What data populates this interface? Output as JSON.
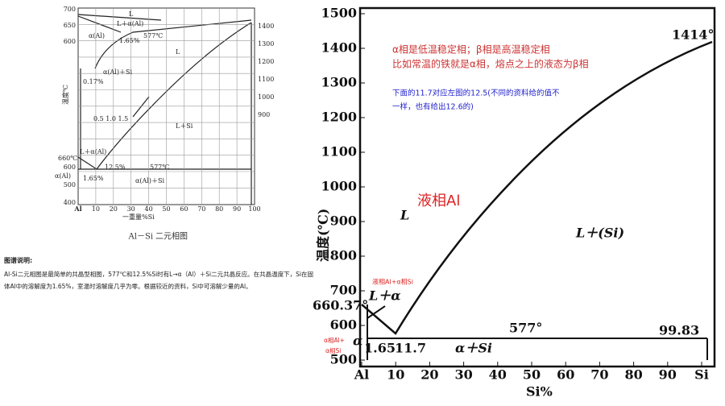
{
  "left_diagram": {
    "y_ticks_upper": [
      "700",
      "650",
      "600"
    ],
    "y_ticks_lower": [
      "600",
      "500",
      "400"
    ],
    "right_ticks": [
      "1400",
      "1300",
      "1200",
      "1100",
      "1000",
      "900"
    ],
    "x_ticks": [
      "Al",
      "10",
      "20",
      "30",
      "40",
      "50",
      "60",
      "70",
      "80",
      "90",
      "100"
    ],
    "x_label": "一重量%Si",
    "y_label": "温度℃",
    "labels": [
      "L",
      "L＋α(Al)",
      "α(Al)",
      "577℃",
      "1.65%",
      "L",
      "α(Al)＋Si",
      "0.17%",
      "0.5  1.0  1.5",
      "L＋Si",
      "L＋α(Al)",
      "660℃",
      "12.5%",
      "577℃",
      "α(Al)",
      "1.65%",
      "α(Al)＋Si"
    ],
    "caption_prefix": "Al－Si",
    "caption": "二元相图"
  },
  "description": {
    "heading": "图谱说明:",
    "text": "Al-Si二元相图是最简单的共晶型相图，577℃和12.5%Si时有L→α（Al）＋Si二元共晶反应。在共晶温度下，Si在固体Al中的溶解度为1.65%，室温时溶解度几乎为零。根据较近的资料，Si中可溶解少量的Al。"
  },
  "right_diagram": {
    "y_ticks": [
      "1500",
      "1400",
      "1300",
      "1200",
      "1100",
      "1000",
      "900",
      "800",
      "700",
      "600",
      "500"
    ],
    "x_ticks": [
      "Al",
      "10",
      "20",
      "30",
      "40",
      "50",
      "60",
      "70",
      "80",
      "90",
      "Si"
    ],
    "x_label": "Si%",
    "y_label": "温度(℃)",
    "labels": [
      "1414°",
      "660.37°",
      "L",
      "L＋α",
      "L＋(Si)",
      "577°",
      "99.83",
      "1.65",
      "11.7",
      "α＋Si",
      "α"
    ],
    "annotations": {
      "note1": "α相是低温稳定相；β相是高温稳定相",
      "note2": "比如常温的铁就是α相，熔点之上的液态为β相",
      "note3a": "下面的11.7对应左图的12.5(不同的资料给的值不",
      "note3b": "一样，也有给出12.6的)",
      "liquid": "液相Al",
      "liquid_alpha": "液相Al+α相Si",
      "solid_a": "α相Al+",
      "solid_b": "α相Si"
    }
  }
}
